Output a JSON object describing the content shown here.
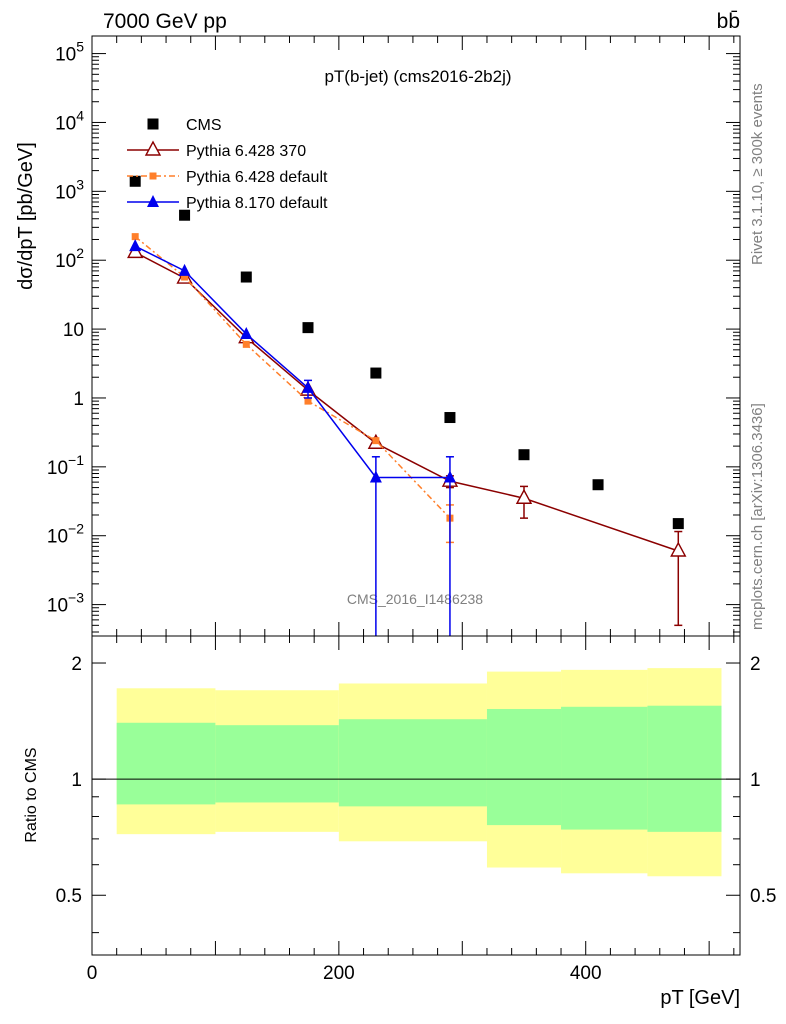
{
  "header": {
    "left": "7000 GeV pp",
    "right": "bb̄"
  },
  "side": {
    "rivet": "Rivet 3.1.10, ≥ 300k events",
    "mcplots": "mcplots.cern.ch [arXiv:1306.3436]"
  },
  "chart_data": [
    {
      "type": "scatter",
      "title": "pT(b-jet) (cms2016-2b2j)",
      "ylabel": "dσ/dpT [pb/GeV]",
      "xlabel": "pT [GeV]",
      "watermark": "CMS_2016_I1486238",
      "yscale": "log",
      "ylim": [
        0.00035,
        180000
      ],
      "xlim": [
        0,
        525
      ],
      "legend_position": "top-left",
      "series": [
        {
          "name": "CMS",
          "color": "#000000",
          "marker": "square",
          "x": [
            35,
            75,
            125,
            175,
            230,
            290,
            350,
            410,
            475
          ],
          "y": [
            1400,
            450,
            57,
            10.5,
            2.3,
            0.52,
            0.15,
            0.055,
            0.015
          ]
        },
        {
          "name": "Pythia 6.428 370",
          "color": "#8b0000",
          "marker": "open-triangle",
          "line": "solid",
          "x": [
            35,
            75,
            125,
            175,
            230,
            290,
            350,
            475
          ],
          "y": [
            130,
            55,
            7.5,
            1.3,
            0.22,
            0.062,
            0.035,
            0.006
          ],
          "yerr": [
            0,
            0,
            0,
            0,
            0,
            0.012,
            0.017,
            0.0055
          ]
        },
        {
          "name": "Pythia 6.428 default",
          "color": "#ff7f2a",
          "marker": "square",
          "line": "dashdot",
          "x": [
            35,
            75,
            125,
            175,
            230,
            290
          ],
          "y": [
            220,
            57,
            6.0,
            0.9,
            0.24,
            0.018
          ],
          "yerr": [
            0,
            0,
            0,
            0,
            0,
            0.01
          ]
        },
        {
          "name": "Pythia 8.170 default",
          "color": "#0000ee",
          "marker": "triangle",
          "line": "solid",
          "x": [
            35,
            75,
            125,
            175,
            230,
            290
          ],
          "y": [
            160,
            70,
            8.5,
            1.4,
            0.07,
            0.07
          ],
          "yerr": [
            0,
            0,
            0,
            0.4,
            0.0699,
            0.0699
          ],
          "yerr_up": [
            0,
            0,
            0,
            0.4,
            0.07,
            0.07
          ],
          "step_segments": [
            [
              230,
              290,
              0.07
            ]
          ]
        }
      ]
    },
    {
      "type": "area",
      "ylabel": "Ratio to CMS",
      "xlabel": "pT [GeV]",
      "yscale": "log",
      "ylim": [
        0.35,
        2.35
      ],
      "xlim": [
        0,
        525
      ],
      "reference_line": 1,
      "bands": [
        {
          "x0": 20,
          "x1": 100,
          "yellow": [
            0.72,
            1.72
          ],
          "green": [
            0.86,
            1.4
          ]
        },
        {
          "x0": 100,
          "x1": 200,
          "yellow": [
            0.73,
            1.7
          ],
          "green": [
            0.87,
            1.38
          ]
        },
        {
          "x0": 200,
          "x1": 320,
          "yellow": [
            0.69,
            1.77
          ],
          "green": [
            0.85,
            1.43
          ]
        },
        {
          "x0": 320,
          "x1": 380,
          "yellow": [
            0.59,
            1.9
          ],
          "green": [
            0.76,
            1.52
          ]
        },
        {
          "x0": 380,
          "x1": 450,
          "yellow": [
            0.57,
            1.92
          ],
          "green": [
            0.74,
            1.54
          ]
        },
        {
          "x0": 450,
          "x1": 510,
          "yellow": [
            0.56,
            1.94
          ],
          "green": [
            0.73,
            1.55
          ]
        }
      ],
      "band_colors": {
        "yellow": "#ffff99",
        "green": "#99ff99"
      },
      "x_ticks": [
        0,
        200,
        400
      ],
      "y_ticks": [
        0.5,
        1,
        2
      ]
    }
  ]
}
